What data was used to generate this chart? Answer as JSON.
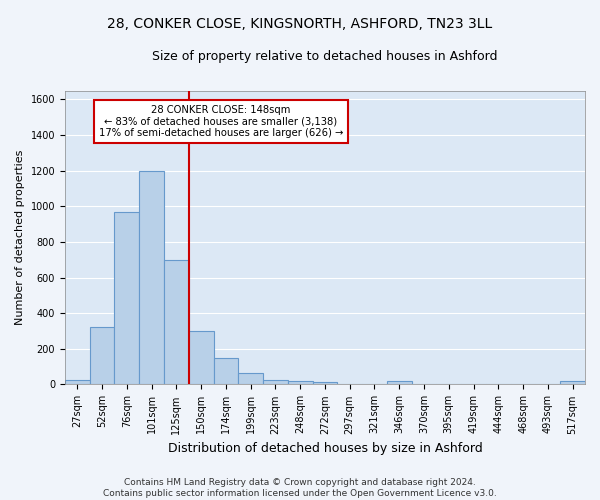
{
  "title1": "28, CONKER CLOSE, KINGSNORTH, ASHFORD, TN23 3LL",
  "title2": "Size of property relative to detached houses in Ashford",
  "xlabel": "Distribution of detached houses by size in Ashford",
  "ylabel": "Number of detached properties",
  "bar_labels": [
    "27sqm",
    "52sqm",
    "76sqm",
    "101sqm",
    "125sqm",
    "150sqm",
    "174sqm",
    "199sqm",
    "223sqm",
    "248sqm",
    "272sqm",
    "297sqm",
    "321sqm",
    "346sqm",
    "370sqm",
    "395sqm",
    "419sqm",
    "444sqm",
    "468sqm",
    "493sqm",
    "517sqm"
  ],
  "bar_values": [
    27,
    320,
    970,
    1200,
    700,
    300,
    150,
    65,
    25,
    20,
    15,
    0,
    0,
    20,
    0,
    0,
    0,
    0,
    0,
    0,
    20
  ],
  "bar_color": "#b8d0e8",
  "bar_edge_color": "#6699cc",
  "red_line_color": "#cc0000",
  "red_line_index": 4.5,
  "annotation_line1": "28 CONKER CLOSE: 148sqm",
  "annotation_line2": "← 83% of detached houses are smaller (3,138)",
  "annotation_line3": "17% of semi-detached houses are larger (626) →",
  "annotation_box_color": "#cc0000",
  "ylim": [
    0,
    1650
  ],
  "yticks": [
    0,
    200,
    400,
    600,
    800,
    1000,
    1200,
    1400,
    1600
  ],
  "footer1": "Contains HM Land Registry data © Crown copyright and database right 2024.",
  "footer2": "Contains public sector information licensed under the Open Government Licence v3.0.",
  "bg_color": "#dce8f5",
  "fig_bg_color": "#f0f4fa",
  "grid_color": "#ffffff",
  "title1_fontsize": 10,
  "title2_fontsize": 9,
  "xlabel_fontsize": 9,
  "ylabel_fontsize": 8,
  "tick_fontsize": 7,
  "footer_fontsize": 6.5
}
